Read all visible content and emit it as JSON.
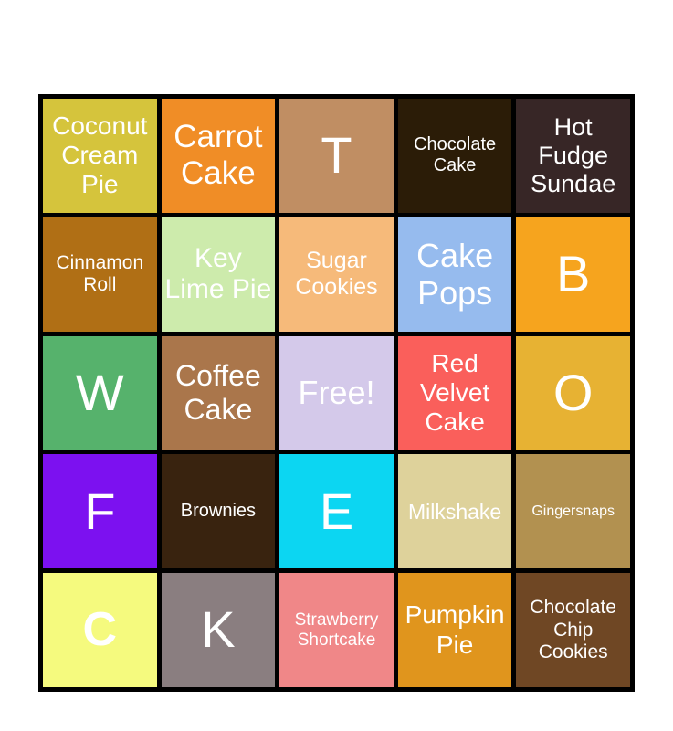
{
  "page": {
    "background": "#ffffff"
  },
  "bingo_card": {
    "grid_line_color": "#000000",
    "text_color": "#ffffff",
    "rows": [
      [
        {
          "label": "Coconut Cream Pie",
          "bg": "#d5c43c",
          "font_px": 28
        },
        {
          "label": "Carrot Cake",
          "bg": "#f08d26",
          "font_px": 35
        },
        {
          "label": "T",
          "bg": "#c08e63",
          "font_px": 56
        },
        {
          "label": "Chocolate Cake",
          "bg": "#2b1c07",
          "font_px": 20
        },
        {
          "label": "Hot Fudge Sundae",
          "bg": "#372626",
          "font_px": 27
        }
      ],
      [
        {
          "label": "Cinnamon Roll",
          "bg": "#b06f15",
          "font_px": 21
        },
        {
          "label": "Key Lime Pie",
          "bg": "#cdebac",
          "font_px": 30
        },
        {
          "label": "Sugar Cookies",
          "bg": "#f6ba7a",
          "font_px": 25
        },
        {
          "label": "Cake Pops",
          "bg": "#96bbee",
          "font_px": 36
        },
        {
          "label": "B",
          "bg": "#f6a41e",
          "font_px": 56
        }
      ],
      [
        {
          "label": "W",
          "bg": "#56b26c",
          "font_px": 56
        },
        {
          "label": "Coffee Cake",
          "bg": "#aa764b",
          "font_px": 32
        },
        {
          "label": "Free!",
          "bg": "#d4c9ea",
          "font_px": 36
        },
        {
          "label": "Red Velvet Cake",
          "bg": "#fa5f5b",
          "font_px": 28
        },
        {
          "label": "O",
          "bg": "#e7b233",
          "font_px": 56
        }
      ],
      [
        {
          "label": "F",
          "bg": "#7c11f0",
          "font_px": 56
        },
        {
          "label": "Brownies",
          "bg": "#39230f",
          "font_px": 20
        },
        {
          "label": "E",
          "bg": "#0cd6f2",
          "font_px": 56
        },
        {
          "label": "Milkshake",
          "bg": "#ded29b",
          "font_px": 23
        },
        {
          "label": "Gingersnaps",
          "bg": "#b29150",
          "font_px": 16
        }
      ],
      [
        {
          "label": "C",
          "bg": "#f5fa7e",
          "font_px": 52,
          "bold": true
        },
        {
          "label": "K",
          "bg": "#8a7e80",
          "font_px": 56
        },
        {
          "label": "Strawberry Shortcake",
          "bg": "#f08788",
          "font_px": 19
        },
        {
          "label": "Pumpkin Pie",
          "bg": "#e0951d",
          "font_px": 28
        },
        {
          "label": "Chocolate Chip Cookies",
          "bg": "#6f4724",
          "font_px": 21
        }
      ]
    ]
  }
}
